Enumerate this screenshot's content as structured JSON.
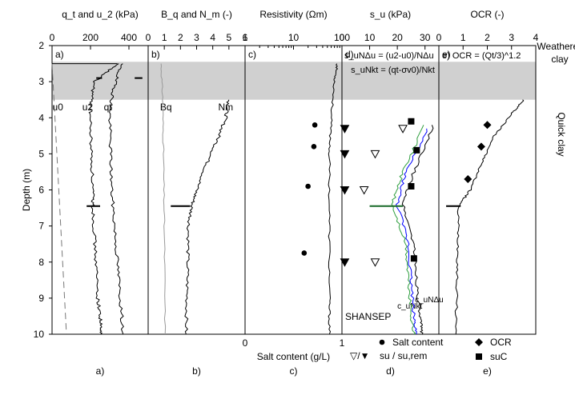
{
  "chart_data": {
    "type": "multi-panel depth profile",
    "shared_y": {
      "label": "Depth (m)",
      "range": [
        2,
        10
      ],
      "ticks": [
        "2",
        "3",
        "4",
        "5",
        "6",
        "7",
        "8",
        "9",
        "10"
      ]
    },
    "layers": [
      {
        "name": "Weathered / clay",
        "label": "Weathered I clay",
        "from": 2.45,
        "to": 3.5,
        "color": "#d0d0d0"
      },
      {
        "name": "Quick clay",
        "label": "Quick clay",
        "from": 3.5,
        "to": 10
      }
    ],
    "panels": [
      {
        "id": "a)",
        "caption": "a)",
        "title": "q_t and u_2 (kPa)",
        "x_range": [
          0,
          500
        ],
        "x_ticks": [
          "0",
          "200",
          "400"
        ],
        "series": [
          {
            "name": "u0",
            "label": "u0",
            "style": "dashed",
            "points": [
              [
                0,
                2.5
              ],
              [
                75,
                10
              ]
            ]
          },
          {
            "name": "u2",
            "label": "u2",
            "points": [
              [
                340,
                2.5
              ],
              [
                220,
                3.0
              ],
              [
                205,
                3.5
              ],
              [
                198,
                4.0
              ],
              [
                205,
                5.0
              ],
              [
                212,
                6.0
              ],
              [
                212,
                6.45
              ],
              [
                218,
                7.0
              ],
              [
                228,
                8.0
              ],
              [
                238,
                9.0
              ],
              [
                252,
                9.6
              ],
              [
                252,
                10
              ]
            ]
          },
          {
            "name": "qt",
            "label": "qt",
            "points": [
              [
                360,
                2.5
              ],
              [
                330,
                3.0
              ],
              [
                310,
                3.5
              ],
              [
                300,
                4.0
              ],
              [
                305,
                5.0
              ],
              [
                310,
                6.0
              ],
              [
                325,
                7.0
              ],
              [
                340,
                8.0
              ],
              [
                355,
                9.0
              ],
              [
                370,
                10
              ]
            ]
          }
        ]
      },
      {
        "id": "b)",
        "caption": "b)",
        "title": "B_q and N_m (-)",
        "x_range": [
          0,
          6
        ],
        "x_ticks": [
          "0",
          "1",
          "2",
          "3",
          "4",
          "5",
          "6"
        ],
        "series": [
          {
            "name": "Bq",
            "label": "Bq",
            "points": [
              [
                0.8,
                2.5
              ],
              [
                0.9,
                3.5
              ],
              [
                0.95,
                5.0
              ],
              [
                1.0,
                7.0
              ],
              [
                1.05,
                10
              ]
            ]
          },
          {
            "name": "Nm",
            "label": "Nm",
            "points": [
              [
                5.0,
                3.5
              ],
              [
                4.8,
                4.0
              ],
              [
                4.3,
                4.6
              ],
              [
                3.6,
                5.3
              ],
              [
                3.0,
                6.0
              ],
              [
                2.7,
                6.45
              ],
              [
                2.5,
                7.0
              ],
              [
                2.45,
                8.0
              ],
              [
                2.4,
                9.0
              ],
              [
                2.35,
                10
              ]
            ]
          }
        ]
      },
      {
        "id": "c)",
        "caption": "c)",
        "title": "Resistivity (Ωm)",
        "x_axis_top": {
          "scale": "log",
          "range": [
            1,
            100
          ],
          "ticks": [
            "1",
            "10",
            "100"
          ]
        },
        "x_axis_bottom": {
          "label": "Salt content (g/L)",
          "range": [
            0,
            1
          ],
          "ticks": [
            "0",
            "1"
          ]
        },
        "series": [
          {
            "name": "Resistivity",
            "points": [
              [
                80,
                2.5
              ],
              [
                70,
                3.0
              ],
              [
                60,
                4.0
              ],
              [
                55,
                5.0
              ],
              [
                55,
                7.0
              ],
              [
                55,
                9.0
              ],
              [
                55,
                10
              ]
            ]
          },
          {
            "name": "Salt content",
            "label": "Salt content",
            "marker": "circle",
            "points": [
              [
                0.72,
                4.2
              ],
              [
                0.71,
                4.8
              ],
              [
                0.65,
                5.9
              ],
              [
                0.61,
                7.75
              ]
            ]
          }
        ]
      },
      {
        "id": "d)",
        "caption": "d)",
        "title": "s_u (kPa)",
        "x_range": [
          0,
          35
        ],
        "x_ticks": [
          "0",
          "10",
          "20",
          "30"
        ],
        "equations": [
          "s_uNΔu = (u2-u0)/NΔu",
          "s_uNkt = (qt-σv0)/Nkt"
        ],
        "series": [
          {
            "name": "cuNkt",
            "label": "c_uNkt",
            "color": "#2e9e3e",
            "points": [
              [
                30,
                4.2
              ],
              [
                22,
                5.5
              ],
              [
                18,
                6.4
              ],
              [
                23,
                7.5
              ],
              [
                24,
                8.5
              ],
              [
                25,
                9.5
              ],
              [
                26,
                10
              ]
            ]
          },
          {
            "name": "cuNΔu",
            "label": "c_uNΔu",
            "color": "#000000",
            "points": [
              [
                33,
                4.2
              ],
              [
                26,
                5.5
              ],
              [
                22,
                6.4
              ],
              [
                26,
                7.5
              ],
              [
                27,
                8.5
              ],
              [
                28,
                9.5
              ],
              [
                29,
                10
              ]
            ]
          },
          {
            "name": "SHANSEP",
            "label": "SHANSEP",
            "color": "#0000ff",
            "points": [
              [
                31,
                4.3
              ],
              [
                23,
                5.5
              ],
              [
                20,
                6.4
              ],
              [
                24,
                7.5
              ],
              [
                25,
                8.5
              ],
              [
                26,
                9.5
              ],
              [
                27,
                10
              ]
            ]
          },
          {
            "name": "su (open)",
            "marker": "triangle-open",
            "points": [
              [
                22,
                4.3
              ],
              [
                12,
                5.0
              ],
              [
                8,
                6.0
              ],
              [
                12,
                8.0
              ]
            ]
          },
          {
            "name": "su,rem (filled)",
            "marker": "triangle-filled",
            "points": [
              [
                1,
                4.3
              ],
              [
                1,
                5.0
              ],
              [
                1,
                6.0
              ],
              [
                1,
                8.0
              ]
            ]
          },
          {
            "name": "suC",
            "label": "suC",
            "marker": "square",
            "points": [
              [
                25,
                4.1
              ],
              [
                27,
                4.9
              ],
              [
                25,
                5.9
              ],
              [
                26,
                7.9
              ]
            ]
          }
        ],
        "legend": [
          "Salt content",
          "su / su,rem"
        ],
        "legend_symbols": "▽/▼"
      },
      {
        "id": "e)",
        "caption": "e)",
        "title": "OCR (-)",
        "x_range": [
          0,
          4
        ],
        "x_ticks": [
          "0",
          "1",
          "2",
          "3",
          "4"
        ],
        "equation": "OCR = (Qt/3)^1.2",
        "series": [
          {
            "name": "OCR profile",
            "points": [
              [
                3.5,
                3.5
              ],
              [
                3.0,
                3.9
              ],
              [
                2.3,
                4.5
              ],
              [
                1.8,
                5.2
              ],
              [
                1.3,
                6.0
              ],
              [
                0.8,
                6.45
              ],
              [
                0.8,
                7.5
              ],
              [
                0.75,
                8.5
              ],
              [
                0.7,
                10
              ]
            ]
          },
          {
            "name": "OCR",
            "label": "OCR",
            "marker": "diamond",
            "points": [
              [
                2.0,
                4.2
              ],
              [
                1.75,
                4.8
              ],
              [
                1.2,
                5.7
              ]
            ]
          }
        ],
        "legend": [
          "OCR",
          "suC"
        ]
      }
    ]
  }
}
